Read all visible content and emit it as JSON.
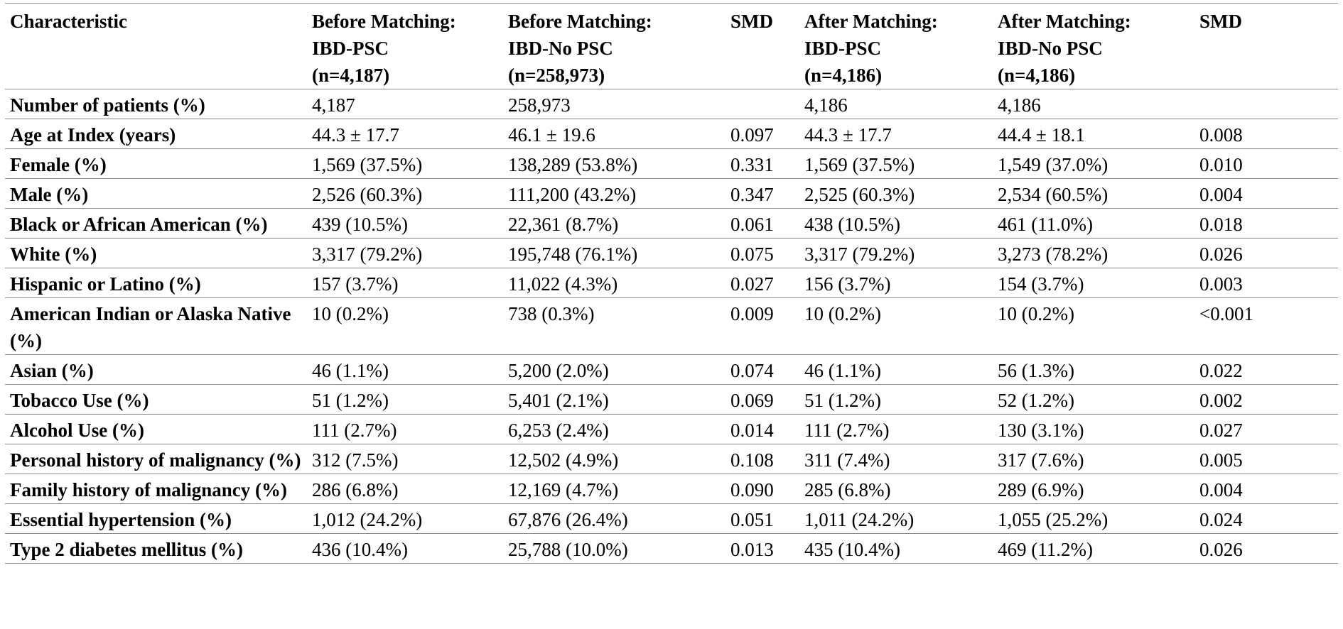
{
  "table": {
    "headers": [
      [
        "Characteristic"
      ],
      [
        "Before Matching:",
        "IBD-PSC",
        "(n=4,187)"
      ],
      [
        "Before Matching:",
        "IBD-No PSC",
        "(n=258,973)"
      ],
      [
        "SMD"
      ],
      [
        "After Matching:",
        "IBD-PSC",
        "(n=4,186)"
      ],
      [
        "After Matching:",
        "IBD-No PSC",
        "(n=4,186)"
      ],
      [
        "SMD"
      ]
    ],
    "rows": [
      [
        "Number of patients (%)",
        "4,187",
        "258,973",
        "",
        "4,186",
        "4,186",
        ""
      ],
      [
        "Age at Index (years)",
        "44.3 ± 17.7",
        "46.1 ± 19.6",
        "0.097",
        "44.3 ± 17.7",
        "44.4 ± 18.1",
        "0.008"
      ],
      [
        "Female (%)",
        "1,569 (37.5%)",
        "138,289 (53.8%)",
        "0.331",
        "1,569 (37.5%)",
        "1,549 (37.0%)",
        "0.010"
      ],
      [
        "Male (%)",
        "2,526 (60.3%)",
        "111,200 (43.2%)",
        "0.347",
        "2,525 (60.3%)",
        "2,534 (60.5%)",
        "0.004"
      ],
      [
        "Black or African American (%)",
        "439 (10.5%)",
        "22,361 (8.7%)",
        "0.061",
        "438 (10.5%)",
        "461 (11.0%)",
        "0.018"
      ],
      [
        "White (%)",
        "3,317 (79.2%)",
        "195,748 (76.1%)",
        "0.075",
        "3,317 (79.2%)",
        "3,273 (78.2%)",
        "0.026"
      ],
      [
        "Hispanic or Latino (%)",
        "157 (3.7%)",
        "11,022 (4.3%)",
        "0.027",
        "156 (3.7%)",
        "154 (3.7%)",
        "0.003"
      ],
      [
        "American Indian or Alaska Native (%)",
        "10 (0.2%)",
        "738 (0.3%)",
        "0.009",
        "10 (0.2%)",
        "10 (0.2%)",
        "<0.001"
      ],
      [
        "Asian (%)",
        "46 (1.1%)",
        "5,200 (2.0%)",
        "0.074",
        "46 (1.1%)",
        "56 (1.3%)",
        "0.022"
      ],
      [
        "Tobacco Use (%)",
        "51 (1.2%)",
        "5,401 (2.1%)",
        "0.069",
        "51 (1.2%)",
        "52 (1.2%)",
        "0.002"
      ],
      [
        "Alcohol Use (%)",
        "111 (2.7%)",
        "6,253 (2.4%)",
        "0.014",
        "111 (2.7%)",
        "130 (3.1%)",
        "0.027"
      ],
      [
        "Personal history of malignancy (%)",
        "312 (7.5%)",
        "12,502 (4.9%)",
        "0.108",
        "311 (7.4%)",
        "317 (7.6%)",
        "0.005"
      ],
      [
        "Family history of malignancy (%)",
        "286 (6.8%)",
        "12,169 (4.7%)",
        "0.090",
        "285 (6.8%)",
        "289 (6.9%)",
        "0.004"
      ],
      [
        "Essential hypertension (%)",
        "1,012 (24.2%)",
        "67,876 (26.4%)",
        "0.051",
        "1,011 (24.2%)",
        "1,055 (25.2%)",
        "0.024"
      ],
      [
        "Type 2 diabetes mellitus (%)",
        "436 (10.4%)",
        "25,788 (10.0%)",
        "0.013",
        "435 (10.4%)",
        "469 (11.2%)",
        "0.026"
      ]
    ]
  }
}
